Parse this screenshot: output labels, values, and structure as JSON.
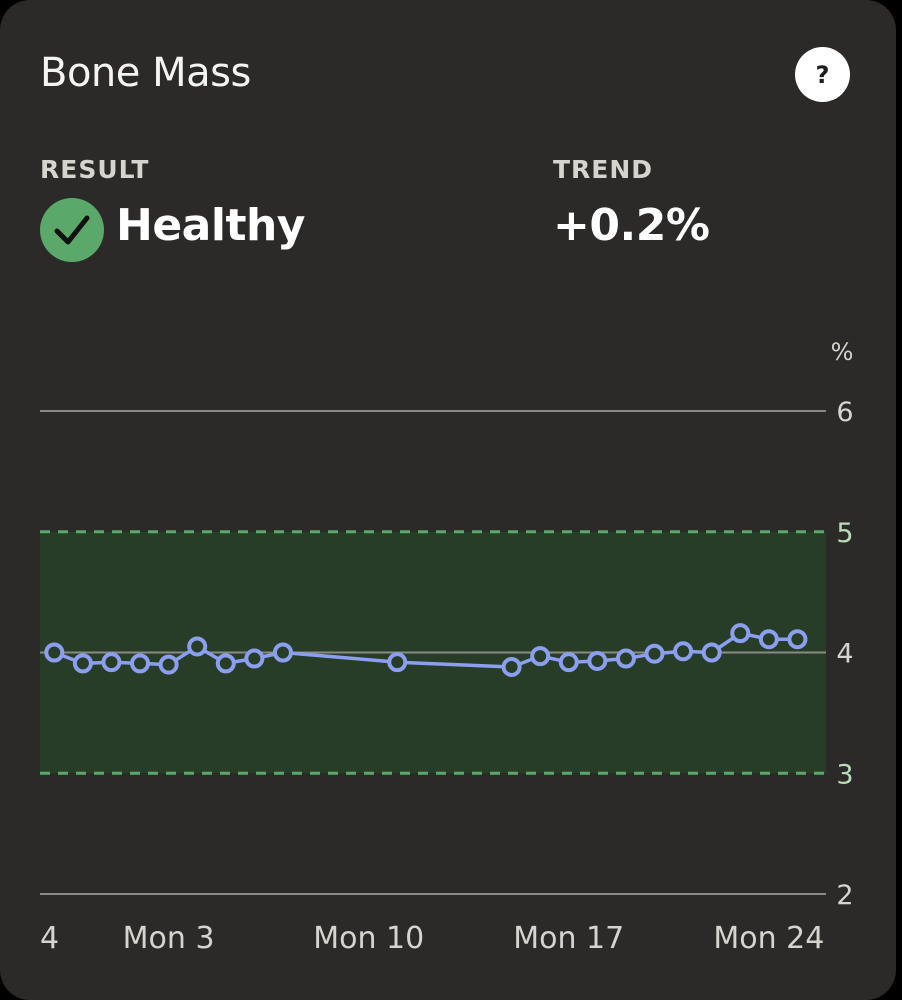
{
  "card": {
    "title": "Bone Mass",
    "help_label": "?",
    "result": {
      "label": "RESULT",
      "value": "Healthy",
      "icon": "check-circle-icon"
    },
    "trend": {
      "label": "TREND",
      "value": "+0.2%"
    }
  },
  "colors": {
    "card_bg": "#2b2a28",
    "healthy_band": "#283d28",
    "healthy_band_border": "#5aa86a",
    "series_line": "#8c9ef0",
    "gridline": "#8a8984",
    "badge": "#5aa86a"
  },
  "chart_data": {
    "type": "line",
    "unit_label": "%",
    "y_ticks": [
      "6",
      "5",
      "4",
      "3",
      "2"
    ],
    "ylim": [
      2,
      6
    ],
    "healthy_range": [
      3,
      5
    ],
    "x_tick_labels": [
      {
        "label": "4",
        "day": 1
      },
      {
        "label": "Mon 3",
        "day": 5
      },
      {
        "label": "Mon 10",
        "day": 12
      },
      {
        "label": "Mon 17",
        "day": 19
      },
      {
        "label": "Mon 24",
        "day": 26
      }
    ],
    "xlim": [
      0.5,
      28
    ],
    "series": [
      {
        "points": [
          {
            "x": 1,
            "y": 4.0
          },
          {
            "x": 2,
            "y": 3.91
          },
          {
            "x": 3,
            "y": 3.92
          },
          {
            "x": 4,
            "y": 3.91
          },
          {
            "x": 5,
            "y": 3.9
          },
          {
            "x": 6,
            "y": 4.05
          },
          {
            "x": 7,
            "y": 3.91
          },
          {
            "x": 8,
            "y": 3.95
          },
          {
            "x": 9,
            "y": 4.0
          },
          {
            "x": 13,
            "y": 3.92
          },
          {
            "x": 17,
            "y": 3.88
          },
          {
            "x": 18,
            "y": 3.97
          },
          {
            "x": 19,
            "y": 3.92
          },
          {
            "x": 20,
            "y": 3.93
          },
          {
            "x": 21,
            "y": 3.95
          },
          {
            "x": 22,
            "y": 3.99
          },
          {
            "x": 23,
            "y": 4.01
          },
          {
            "x": 24,
            "y": 4.0
          },
          {
            "x": 25,
            "y": 4.16
          },
          {
            "x": 26,
            "y": 4.11
          },
          {
            "x": 27,
            "y": 4.11
          }
        ]
      }
    ]
  }
}
